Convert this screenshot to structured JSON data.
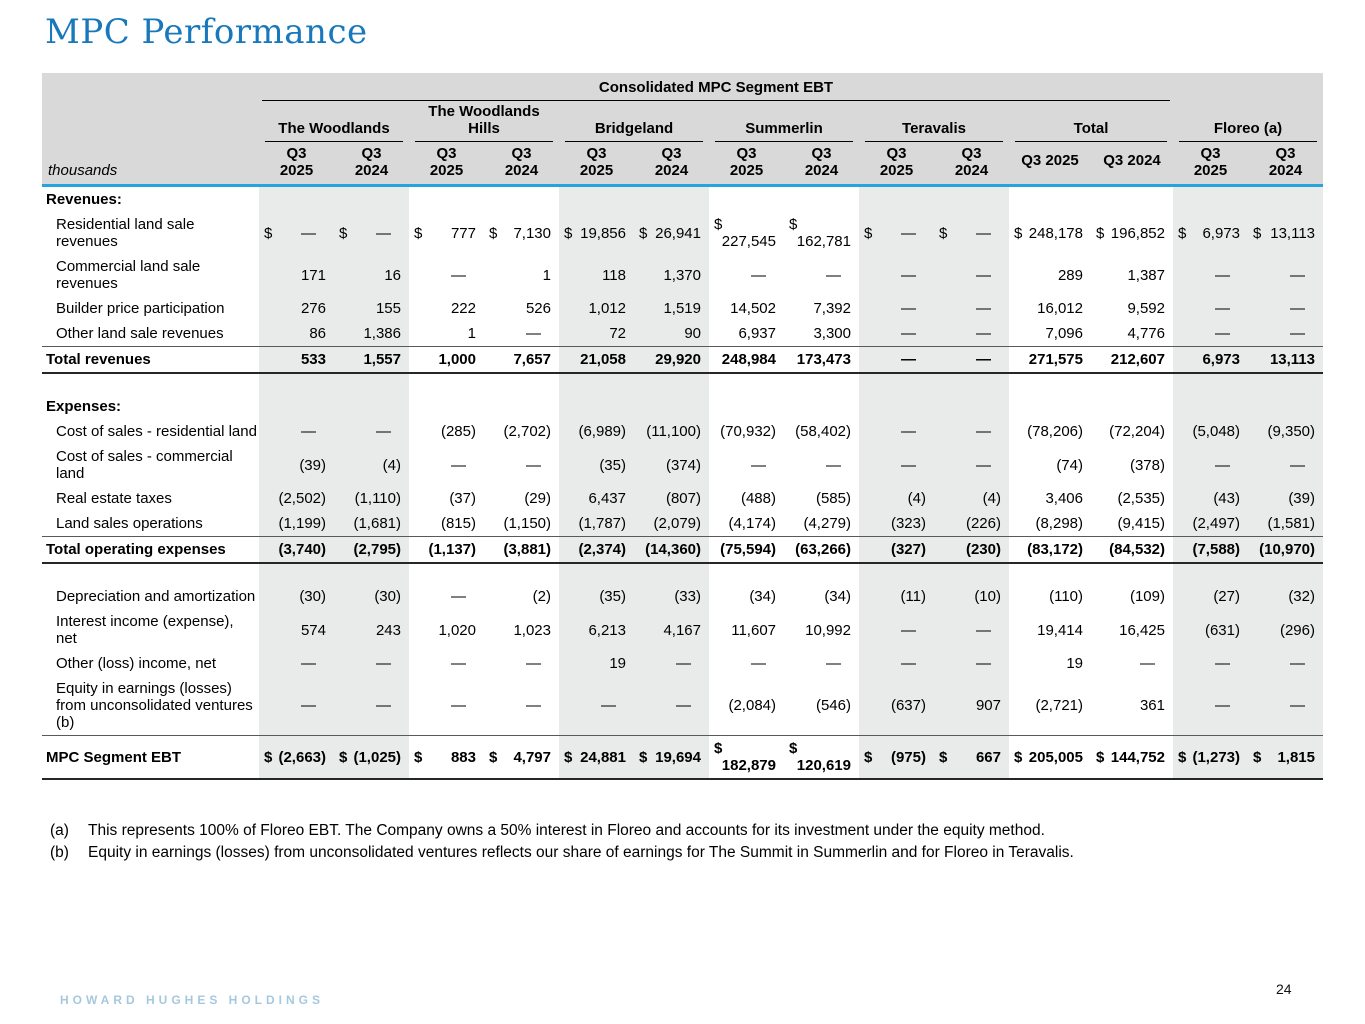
{
  "page": {
    "title": "MPC Performance",
    "page_number": "24",
    "brand": "HOWARD HUGHES HOLDINGS"
  },
  "table": {
    "spanner": "Consolidated MPC Segment EBT",
    "unit_label": "thousands",
    "currency_symbol": "$",
    "period_headers": [
      "Q3 2025",
      "Q3 2024"
    ],
    "groups": [
      {
        "name": "The Woodlands",
        "shaded": true,
        "stacked_periods": true
      },
      {
        "name": "The Woodlands Hills",
        "shaded": false,
        "stacked_periods": true
      },
      {
        "name": "Bridgeland",
        "shaded": true,
        "stacked_periods": true
      },
      {
        "name": "Summerlin",
        "shaded": false,
        "stacked_periods": true
      },
      {
        "name": "Teravalis",
        "shaded": true,
        "stacked_periods": true
      },
      {
        "name": "Total",
        "shaded": false,
        "stacked_periods": false
      },
      {
        "name": "Floreo (a)",
        "shaded": true,
        "stacked_periods": true
      }
    ],
    "rows": [
      {
        "type": "section",
        "label": "Revenues:"
      },
      {
        "type": "data",
        "label": "Residential land sale revenues",
        "dollar": true,
        "values": [
          "—",
          "—",
          "777",
          "7,130",
          "19,856",
          "26,941",
          "227,545",
          "162,781",
          "—",
          "—",
          "248,178",
          "196,852",
          "6,973",
          "13,113"
        ]
      },
      {
        "type": "data",
        "label": "Commercial land sale revenues",
        "values": [
          "171",
          "16",
          "—",
          "1",
          "118",
          "1,370",
          "—",
          "—",
          "—",
          "—",
          "289",
          "1,387",
          "—",
          "—"
        ]
      },
      {
        "type": "data",
        "label": "Builder price participation",
        "values": [
          "276",
          "155",
          "222",
          "526",
          "1,012",
          "1,519",
          "14,502",
          "7,392",
          "—",
          "—",
          "16,012",
          "9,592",
          "—",
          "—"
        ]
      },
      {
        "type": "data",
        "label": "Other land sale revenues",
        "values": [
          "86",
          "1,386",
          "1",
          "—",
          "72",
          "90",
          "6,937",
          "3,300",
          "—",
          "—",
          "7,096",
          "4,776",
          "—",
          "—"
        ]
      },
      {
        "type": "total",
        "label": "Total revenues",
        "values": [
          "533",
          "1,557",
          "1,000",
          "7,657",
          "21,058",
          "29,920",
          "248,984",
          "173,473",
          "—",
          "—",
          "271,575",
          "212,607",
          "6,973",
          "13,113"
        ]
      },
      {
        "type": "spacer"
      },
      {
        "type": "section",
        "label": "Expenses:"
      },
      {
        "type": "data",
        "label": "Cost of sales - residential land",
        "values": [
          "—",
          "—",
          "(285)",
          "(2,702)",
          "(6,989)",
          "(11,100)",
          "(70,932)",
          "(58,402)",
          "—",
          "—",
          "(78,206)",
          "(72,204)",
          "(5,048)",
          "(9,350)"
        ]
      },
      {
        "type": "data",
        "label": "Cost of sales - commercial land",
        "values": [
          "(39)",
          "(4)",
          "—",
          "—",
          "(35)",
          "(374)",
          "—",
          "—",
          "—",
          "—",
          "(74)",
          "(378)",
          "—",
          "—"
        ]
      },
      {
        "type": "data",
        "label": "Real estate taxes",
        "values": [
          "(2,502)",
          "(1,110)",
          "(37)",
          "(29)",
          "6,437",
          "(807)",
          "(488)",
          "(585)",
          "(4)",
          "(4)",
          "3,406",
          "(2,535)",
          "(43)",
          "(39)"
        ]
      },
      {
        "type": "data",
        "label": "Land sales operations",
        "values": [
          "(1,199)",
          "(1,681)",
          "(815)",
          "(1,150)",
          "(1,787)",
          "(2,079)",
          "(4,174)",
          "(4,279)",
          "(323)",
          "(226)",
          "(8,298)",
          "(9,415)",
          "(2,497)",
          "(1,581)"
        ]
      },
      {
        "type": "total",
        "label": "Total operating expenses",
        "values": [
          "(3,740)",
          "(2,795)",
          "(1,137)",
          "(3,881)",
          "(2,374)",
          "(14,360)",
          "(75,594)",
          "(63,266)",
          "(327)",
          "(230)",
          "(83,172)",
          "(84,532)",
          "(7,588)",
          "(10,970)"
        ]
      },
      {
        "type": "spacer"
      },
      {
        "type": "data",
        "label": "Depreciation and amortization",
        "values": [
          "(30)",
          "(30)",
          "—",
          "(2)",
          "(35)",
          "(33)",
          "(34)",
          "(34)",
          "(11)",
          "(10)",
          "(110)",
          "(109)",
          "(27)",
          "(32)"
        ]
      },
      {
        "type": "data",
        "label": "Interest income (expense), net",
        "values": [
          "574",
          "243",
          "1,020",
          "1,023",
          "6,213",
          "4,167",
          "11,607",
          "10,992",
          "—",
          "—",
          "19,414",
          "16,425",
          "(631)",
          "(296)"
        ]
      },
      {
        "type": "data",
        "label": "Other (loss) income, net",
        "values": [
          "—",
          "—",
          "—",
          "—",
          "19",
          "—",
          "—",
          "—",
          "—",
          "—",
          "19",
          "—",
          "—",
          "—"
        ]
      },
      {
        "type": "data",
        "label": "Equity in earnings (losses) from unconsolidated ventures (b)",
        "values": [
          "—",
          "—",
          "—",
          "—",
          "—",
          "—",
          "(2,084)",
          "(546)",
          "(637)",
          "907",
          "(2,721)",
          "361",
          "—",
          "—"
        ]
      },
      {
        "type": "total",
        "label": "MPC Segment EBT",
        "dollar": true,
        "values": [
          "(2,663)",
          "(1,025)",
          "883",
          "4,797",
          "24,881",
          "19,694",
          "182,879",
          "120,619",
          "(975)",
          "667",
          "205,005",
          "144,752",
          "(1,273)",
          "1,815"
        ]
      }
    ]
  },
  "footnotes": [
    {
      "marker": "(a)",
      "text": "This represents 100% of Floreo EBT. The Company owns a 50% interest in Floreo and accounts for its investment under the equity method."
    },
    {
      "marker": "(b)",
      "text": "Equity in earnings (losses) from unconsolidated ventures reflects our share of earnings for The Summit in Summerlin and for Floreo in Teravalis."
    }
  ]
}
